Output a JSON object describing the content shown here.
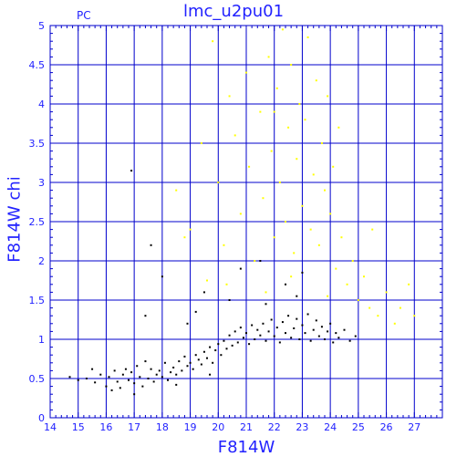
{
  "header": {
    "title": "lmc_u2pu01",
    "tag": "PC"
  },
  "chart_data": {
    "type": "scatter",
    "title": "lmc_u2pu01",
    "xlabel": "F814W",
    "ylabel": "F814W  chi",
    "xlim": [
      14,
      28
    ],
    "ylim": [
      0,
      5
    ],
    "xticks": [
      14,
      15,
      16,
      17,
      18,
      19,
      20,
      21,
      22,
      23,
      24,
      25,
      26,
      27
    ],
    "yticks": [
      0,
      0.5,
      1,
      1.5,
      2,
      2.5,
      3,
      3.5,
      4,
      4.5,
      5
    ],
    "grid": true,
    "colors": {
      "frame": "#0000cc",
      "axis_text": "#2222ff",
      "black_series": "#000000",
      "yellow_series": "#ffff00"
    },
    "series": [
      {
        "color": "#000000",
        "points": [
          [
            14.7,
            0.52
          ],
          [
            15.0,
            0.48
          ],
          [
            15.3,
            0.5
          ],
          [
            15.5,
            0.62
          ],
          [
            15.6,
            0.45
          ],
          [
            15.8,
            0.55
          ],
          [
            16.0,
            0.4
          ],
          [
            16.1,
            0.52
          ],
          [
            16.3,
            0.6
          ],
          [
            16.4,
            0.46
          ],
          [
            16.5,
            0.38
          ],
          [
            16.6,
            0.55
          ],
          [
            16.7,
            0.62
          ],
          [
            16.8,
            0.48
          ],
          [
            16.9,
            0.58
          ],
          [
            17.0,
            0.44
          ],
          [
            17.1,
            0.66
          ],
          [
            17.2,
            0.52
          ],
          [
            17.3,
            0.4
          ],
          [
            17.4,
            0.72
          ],
          [
            17.5,
            0.5
          ],
          [
            17.6,
            0.62
          ],
          [
            17.7,
            0.46
          ],
          [
            17.8,
            0.55
          ],
          [
            17.9,
            0.6
          ],
          [
            18.0,
            0.52
          ],
          [
            18.1,
            0.7
          ],
          [
            18.2,
            0.48
          ],
          [
            18.3,
            0.58
          ],
          [
            18.4,
            0.64
          ],
          [
            18.5,
            0.55
          ],
          [
            18.6,
            0.72
          ],
          [
            18.7,
            0.6
          ],
          [
            18.8,
            0.78
          ],
          [
            18.9,
            0.66
          ],
          [
            19.0,
            0.7
          ],
          [
            19.1,
            0.62
          ],
          [
            19.2,
            0.8
          ],
          [
            19.3,
            0.74
          ],
          [
            19.4,
            0.68
          ],
          [
            19.5,
            0.84
          ],
          [
            19.6,
            0.76
          ],
          [
            19.7,
            0.9
          ],
          [
            19.8,
            0.7
          ],
          [
            19.9,
            0.86
          ],
          [
            20.0,
            0.94
          ],
          [
            20.1,
            0.8
          ],
          [
            20.2,
            0.98
          ],
          [
            20.3,
            0.88
          ],
          [
            20.4,
            1.05
          ],
          [
            20.5,
            0.92
          ],
          [
            20.6,
            1.1
          ],
          [
            20.7,
            0.96
          ],
          [
            20.8,
            1.15
          ],
          [
            20.9,
            1.02
          ],
          [
            21.0,
            1.08
          ],
          [
            21.1,
            0.94
          ],
          [
            21.2,
            1.18
          ],
          [
            21.3,
            1.0
          ],
          [
            21.4,
            1.12
          ],
          [
            21.5,
            1.05
          ],
          [
            21.6,
            1.2
          ],
          [
            21.7,
            0.98
          ],
          [
            21.8,
            1.1
          ],
          [
            21.9,
            1.25
          ],
          [
            22.0,
            1.04
          ],
          [
            22.1,
            1.15
          ],
          [
            22.2,
            0.96
          ],
          [
            22.3,
            1.22
          ],
          [
            22.4,
            1.08
          ],
          [
            22.5,
            1.3
          ],
          [
            22.6,
            1.02
          ],
          [
            22.7,
            1.14
          ],
          [
            22.8,
            1.26
          ],
          [
            22.9,
            1.0
          ],
          [
            23.0,
            1.18
          ],
          [
            23.1,
            1.08
          ],
          [
            23.2,
            1.32
          ],
          [
            23.3,
            0.98
          ],
          [
            23.4,
            1.12
          ],
          [
            23.5,
            1.24
          ],
          [
            23.6,
            1.04
          ],
          [
            23.7,
            1.16
          ],
          [
            23.8,
            1.0
          ],
          [
            23.9,
            1.1
          ],
          [
            24.0,
            1.2
          ],
          [
            24.1,
            0.96
          ],
          [
            24.2,
            1.08
          ],
          [
            24.3,
            1.02
          ],
          [
            24.5,
            1.12
          ],
          [
            24.7,
            0.98
          ],
          [
            24.9,
            1.04
          ],
          [
            16.9,
            3.15
          ],
          [
            17.6,
            2.2
          ],
          [
            18.0,
            1.8
          ],
          [
            19.5,
            1.6
          ],
          [
            20.8,
            1.9
          ],
          [
            21.5,
            2.0
          ],
          [
            22.4,
            1.7
          ],
          [
            23.0,
            1.85
          ],
          [
            21.7,
            1.45
          ],
          [
            22.8,
            1.55
          ],
          [
            20.4,
            1.5
          ],
          [
            19.2,
            1.35
          ],
          [
            17.4,
            1.3
          ],
          [
            18.9,
            1.2
          ],
          [
            16.2,
            0.35
          ],
          [
            17.0,
            0.3
          ],
          [
            18.5,
            0.42
          ],
          [
            19.7,
            0.55
          ]
        ]
      },
      {
        "color": "#ffff00",
        "points": [
          [
            18.5,
            2.9
          ],
          [
            19.0,
            2.4
          ],
          [
            19.4,
            3.5
          ],
          [
            19.8,
            4.8
          ],
          [
            20.0,
            3.0
          ],
          [
            20.2,
            2.2
          ],
          [
            20.4,
            4.1
          ],
          [
            20.6,
            3.6
          ],
          [
            20.8,
            2.6
          ],
          [
            21.0,
            4.4
          ],
          [
            21.1,
            3.2
          ],
          [
            21.3,
            2.0
          ],
          [
            21.5,
            3.9
          ],
          [
            21.6,
            2.8
          ],
          [
            21.8,
            4.6
          ],
          [
            21.9,
            3.4
          ],
          [
            22.0,
            2.3
          ],
          [
            22.1,
            4.2
          ],
          [
            22.2,
            3.0
          ],
          [
            22.3,
            4.95
          ],
          [
            22.4,
            2.5
          ],
          [
            22.5,
            3.7
          ],
          [
            22.6,
            4.5
          ],
          [
            22.7,
            2.1
          ],
          [
            22.8,
            3.3
          ],
          [
            22.9,
            4.0
          ],
          [
            23.0,
            2.7
          ],
          [
            23.1,
            3.8
          ],
          [
            23.2,
            4.85
          ],
          [
            23.3,
            2.4
          ],
          [
            23.4,
            3.1
          ],
          [
            23.5,
            4.3
          ],
          [
            23.6,
            2.2
          ],
          [
            23.7,
            3.5
          ],
          [
            23.8,
            2.9
          ],
          [
            23.9,
            4.1
          ],
          [
            24.0,
            2.6
          ],
          [
            24.1,
            3.2
          ],
          [
            24.2,
            1.9
          ],
          [
            24.4,
            2.3
          ],
          [
            24.6,
            1.7
          ],
          [
            24.8,
            2.0
          ],
          [
            25.0,
            1.5
          ],
          [
            25.2,
            1.8
          ],
          [
            25.4,
            1.4
          ],
          [
            25.5,
            2.4
          ],
          [
            25.7,
            1.3
          ],
          [
            26.0,
            1.6
          ],
          [
            26.3,
            1.2
          ],
          [
            26.5,
            1.4
          ],
          [
            26.8,
            1.7
          ],
          [
            27.0,
            1.3
          ],
          [
            24.3,
            3.7
          ],
          [
            22.0,
            3.9
          ],
          [
            20.3,
            1.7
          ],
          [
            21.7,
            1.6
          ],
          [
            22.6,
            1.8
          ],
          [
            23.9,
            1.55
          ],
          [
            19.6,
            1.75
          ],
          [
            18.8,
            2.3
          ]
        ]
      }
    ]
  }
}
